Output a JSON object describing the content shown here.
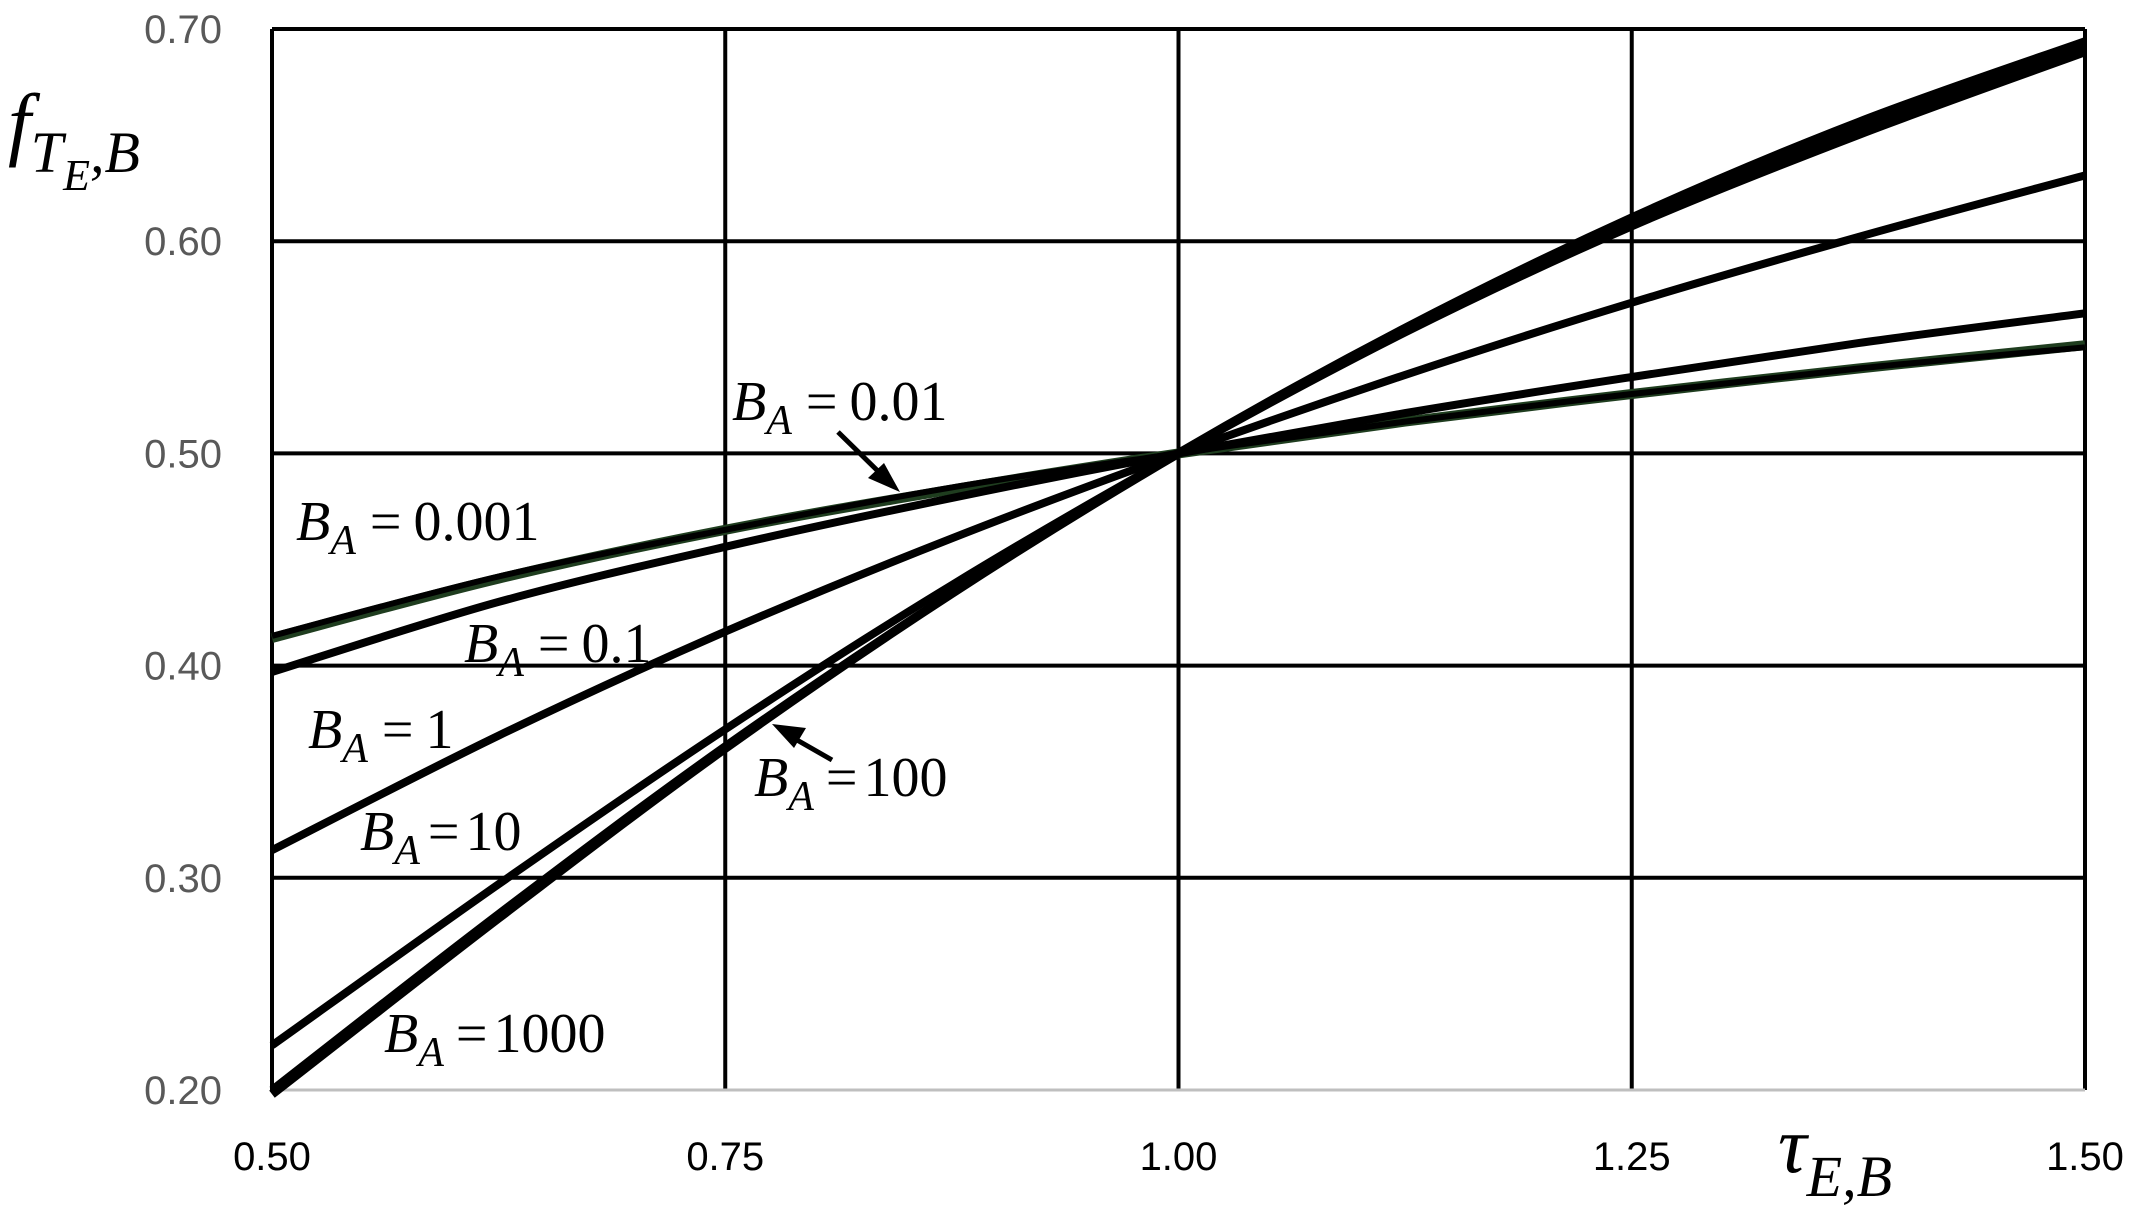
{
  "chart_data": {
    "type": "line",
    "x_axis": {
      "label_symbol": "τ",
      "label_subscript": "E,B",
      "range": [
        0.5,
        1.5
      ],
      "ticks": [
        0.5,
        0.75,
        1.0,
        1.25,
        1.5
      ],
      "tick_labels": [
        "0.50",
        "0.75",
        "1.00",
        "1.25",
        "1.50"
      ]
    },
    "y_axis": {
      "label_symbol": "f",
      "label_subscript_main": "T",
      "label_subscript_sub": "E",
      "label_subscript_tail": ",B",
      "range": [
        0.2,
        0.7
      ],
      "ticks": [
        0.2,
        0.3,
        0.4,
        0.5,
        0.6,
        0.7
      ],
      "tick_labels": [
        "0.20",
        "0.30",
        "0.40",
        "0.50",
        "0.60",
        "0.70"
      ]
    },
    "grid": true,
    "series": [
      {
        "name": "B_A = 0.001",
        "label": {
          "symbol": "B",
          "sub": "A",
          "eq": "=",
          "value": "0.001"
        },
        "color": "#1f3d1f",
        "width": 10,
        "x": [
          0.5,
          0.625,
          0.75,
          0.875,
          1.0,
          1.125,
          1.25,
          1.375,
          1.5
        ],
        "y": [
          0.413,
          0.441,
          0.464,
          0.483,
          0.5,
          0.515,
          0.528,
          0.54,
          0.551
        ]
      },
      {
        "name": "B_A = 0.01",
        "label": {
          "symbol": "B",
          "sub": "A",
          "eq": "=",
          "value": "0.01"
        },
        "color": "#000000",
        "width": 6,
        "x": [
          0.5,
          0.625,
          0.75,
          0.875,
          1.0,
          1.125,
          1.25,
          1.375,
          1.5
        ],
        "y": [
          0.414,
          0.442,
          0.464,
          0.484,
          0.5,
          0.515,
          0.528,
          0.54,
          0.55
        ]
      },
      {
        "name": "B_A = 0.1",
        "label": {
          "symbol": "B",
          "sub": "A",
          "eq": "=",
          "value": "0.1"
        },
        "color": "#000000",
        "width": 8,
        "x": [
          0.5,
          0.625,
          0.75,
          0.875,
          1.0,
          1.125,
          1.25,
          1.375,
          1.5
        ],
        "y": [
          0.397,
          0.43,
          0.456,
          0.479,
          0.5,
          0.519,
          0.536,
          0.552,
          0.566
        ]
      },
      {
        "name": "B_A = 1",
        "label": {
          "symbol": "B",
          "sub": "A",
          "eq": "=",
          "value": "1"
        },
        "color": "#000000",
        "width": 8,
        "x": [
          0.5,
          0.625,
          0.75,
          0.875,
          1.0,
          1.125,
          1.25,
          1.375,
          1.5
        ],
        "y": [
          0.313,
          0.367,
          0.416,
          0.46,
          0.5,
          0.537,
          0.571,
          0.602,
          0.631
        ]
      },
      {
        "name": "B_A = 10",
        "label": {
          "symbol": "B",
          "sub": "A",
          "eq": "=",
          "value": "10"
        },
        "color": "#000000",
        "width": 8,
        "x": [
          0.5,
          0.625,
          0.75,
          0.875,
          1.0,
          1.125,
          1.25,
          1.375,
          1.5
        ],
        "y": [
          0.221,
          0.297,
          0.37,
          0.438,
          0.5,
          0.557,
          0.607,
          0.65,
          0.689
        ]
      },
      {
        "name": "B_A = 100",
        "label": {
          "symbol": "B",
          "sub": "A",
          "eq": "=",
          "value": "100"
        },
        "color": "#000000",
        "width": 8,
        "x": [
          0.5,
          0.625,
          0.75,
          0.875,
          1.0,
          1.125,
          1.25,
          1.375,
          1.5
        ],
        "y": [
          0.2,
          0.283,
          0.362,
          0.434,
          0.5,
          0.558,
          0.609,
          0.653,
          0.691
        ]
      },
      {
        "name": "B_A = 1000",
        "label": {
          "symbol": "B",
          "sub": "A",
          "eq": "=",
          "value": "1000"
        },
        "color": "#000000",
        "width": 9,
        "x": [
          0.5,
          0.625,
          0.75,
          0.875,
          1.0,
          1.125,
          1.25,
          1.375,
          1.5
        ],
        "y": [
          0.198,
          0.281,
          0.361,
          0.434,
          0.5,
          0.559,
          0.611,
          0.656,
          0.694
        ]
      }
    ]
  }
}
